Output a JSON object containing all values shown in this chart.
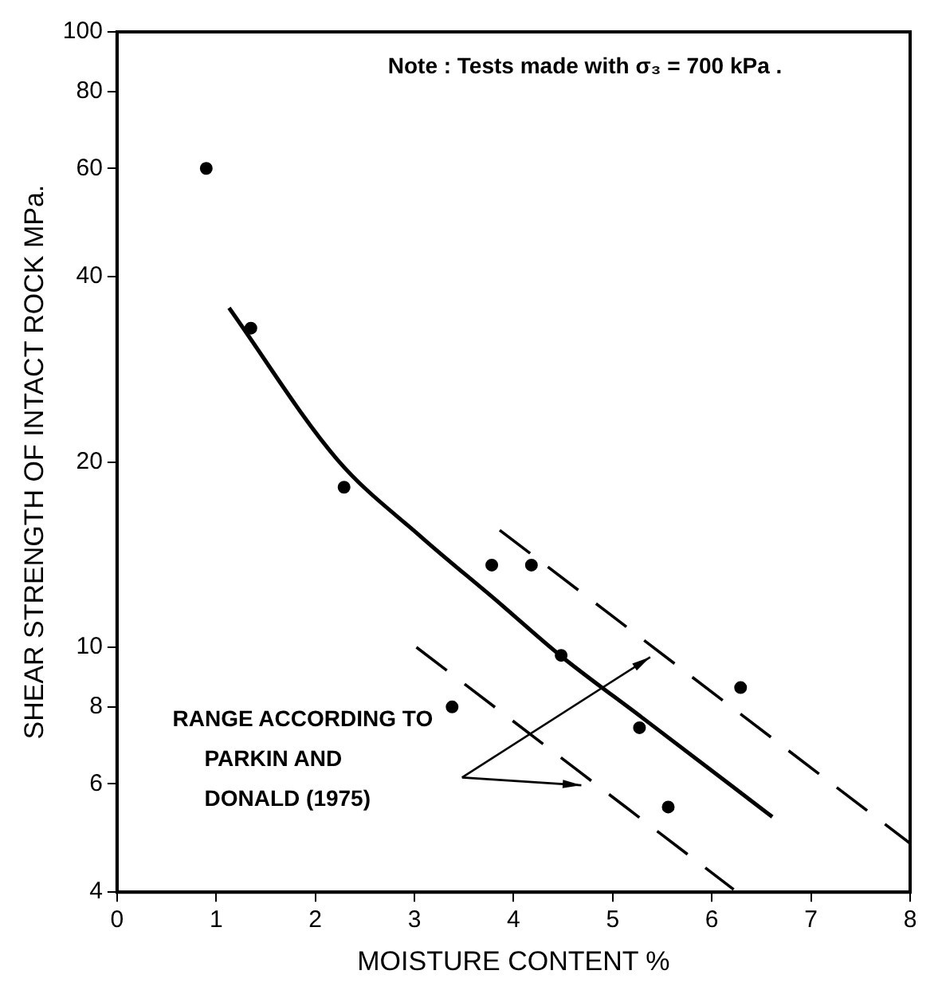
{
  "chart_data": {
    "type": "scatter",
    "xlabel": "MOISTURE CONTENT %",
    "ylabel": "SHEAR STRENGTH OF INTACT ROCK MPa.",
    "xlim": [
      0,
      8
    ],
    "xticks": [
      0,
      1,
      2,
      3,
      4,
      5,
      6,
      7,
      8
    ],
    "ylim": [
      4,
      100
    ],
    "yticks": [
      4,
      6,
      8,
      10,
      20,
      40,
      60,
      80,
      100
    ],
    "log": "y",
    "grid": false,
    "legend": false,
    "annotations": [
      "Note : Tests made with σ₃ = 700 kPa .",
      "RANGE ACCORDING TO\nPARKIN AND\nDONALD (1975)"
    ],
    "series": [
      {
        "type": "scatter",
        "color": "#000000",
        "marker": "circle",
        "x": [
          0.9,
          1.35,
          2.29,
          3.38,
          3.78,
          4.18,
          4.48,
          5.27,
          5.56,
          6.29
        ],
        "values": [
          60,
          33,
          18.2,
          8.0,
          13.6,
          13.6,
          9.7,
          7.4,
          5.5,
          8.6
        ]
      },
      {
        "type": "line",
        "color": "#000000",
        "line_style": "solid",
        "x": [
          1.13,
          2.22,
          3.07,
          3.83,
          4.47,
          5.29,
          6.61
        ],
        "values": [
          35.6,
          20.2,
          15.1,
          11.9,
          9.7,
          7.7,
          5.3
        ]
      },
      {
        "type": "line",
        "color": "#000000",
        "line_style": "dashed",
        "x": [
          3.86,
          8.0
        ],
        "values": [
          15.5,
          4.8
        ]
      },
      {
        "type": "line",
        "color": "#000000",
        "line_style": "dashed",
        "x": [
          3.02,
          6.22
        ],
        "values": [
          10.0,
          4.04
        ]
      }
    ]
  }
}
